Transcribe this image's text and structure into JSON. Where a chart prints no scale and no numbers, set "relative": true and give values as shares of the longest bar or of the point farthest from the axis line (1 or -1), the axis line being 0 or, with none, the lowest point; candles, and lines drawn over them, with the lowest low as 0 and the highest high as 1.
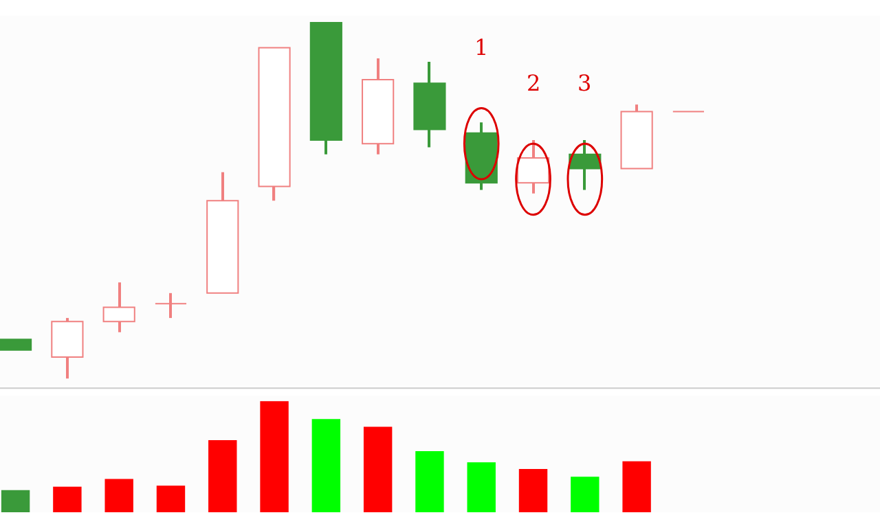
{
  "chart_data": [
    {
      "type": "candlestick",
      "relative": true,
      "categories": [
        null,
        null,
        null,
        null,
        null,
        null,
        null,
        null,
        null,
        null,
        null,
        null,
        null,
        null
      ],
      "ohlc": [
        [
          0.11,
          0.11,
          0.08,
          0.08
        ],
        [
          0.06,
          0.17,
          0,
          0.16
        ],
        [
          0.16,
          0.27,
          0.13,
          0.2
        ],
        [
          0.21,
          0.24,
          0.17,
          0.21
        ],
        [
          0.24,
          0.58,
          0.24,
          0.5
        ],
        [
          0.54,
          0.93,
          0.5,
          0.93
        ],
        [
          1,
          1,
          0.63,
          0.67
        ],
        [
          0.66,
          0.9,
          0.63,
          0.84
        ],
        [
          0.83,
          0.89,
          0.65,
          0.7
        ],
        [
          0.69,
          0.72,
          0.53,
          0.55
        ],
        [
          0.55,
          0.67,
          0.52,
          0.62
        ],
        [
          0.63,
          0.67,
          0.53,
          0.59
        ],
        [
          0.59,
          0.77,
          0.59,
          0.75
        ],
        [
          0.75,
          0.75,
          0.75,
          0.75
        ]
      ],
      "colors": [
        "#3a9a3a",
        "#f08080",
        "#f08080",
        "#f08080",
        "#f08080",
        "#f08080",
        "#3a9a3a",
        "#f08080",
        "#3a9a3a",
        "#3a9a3a",
        "#f08080",
        "#3a9a3a",
        "#f08080",
        "#f08080"
      ],
      "annotations": [
        "1",
        "2",
        "3"
      ]
    },
    {
      "type": "bar",
      "relative": true,
      "categories": [
        null,
        null,
        null,
        null,
        null,
        null,
        null,
        null,
        null,
        null,
        null,
        null,
        null,
        null
      ],
      "values": [
        0.2,
        0.23,
        0.3,
        0.24,
        0.65,
        1,
        0.84,
        0.77,
        0.55,
        0.45,
        0.39,
        0.32,
        0.46,
        0
      ],
      "colors": [
        "#3a9a3a",
        "#ff0000",
        "#ff0000",
        "#ff0000",
        "#ff0000",
        "#ff0000",
        "#00ff00",
        "#ff0000",
        "#00ff00",
        "#00ff00",
        "#ff0000",
        "#00ff00",
        "#ff0000",
        "#ff0000"
      ]
    }
  ]
}
